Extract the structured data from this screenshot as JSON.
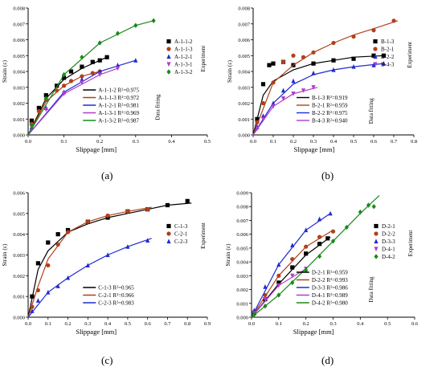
{
  "chart_data": [
    {
      "type": "scatter",
      "panel_label": "(a)",
      "xlabel": "Slippage [mm]",
      "ylabel": "Strain (ε)",
      "xlim": [
        0,
        0.5
      ],
      "ylim": [
        0,
        0.008
      ],
      "xticks": [
        "0.0",
        "0.1",
        "0.2",
        "0.3",
        "0.4",
        "0.5"
      ],
      "yticks": [
        "0.000",
        "0.001",
        "0.002",
        "0.003",
        "0.004",
        "0.005",
        "0.006",
        "0.007",
        "0.008"
      ],
      "legend_experiment_title": "Experiment",
      "legend_fitting_title": "Data fitting",
      "series": [
        {
          "name": "A-1-1-2",
          "fit_label": "A-1-1-2  R²=0.975",
          "color": "#000000",
          "marker": "square",
          "x": [
            0.01,
            0.03,
            0.05,
            0.08,
            0.1,
            0.12,
            0.15,
            0.18,
            0.2,
            0.22
          ],
          "y": [
            0.0009,
            0.0017,
            0.0025,
            0.0031,
            0.0036,
            0.004,
            0.0043,
            0.0046,
            0.0047,
            0.0049
          ],
          "fit_x": [
            0,
            0.05,
            0.1,
            0.15,
            0.2,
            0.22
          ],
          "fit_y": [
            0,
            0.0023,
            0.0035,
            0.0042,
            0.0047,
            0.0049
          ]
        },
        {
          "name": "A-1-1-3",
          "fit_label": "A-1-1-3  R²=0.972",
          "color": "#b0401b",
          "marker": "circle",
          "x": [
            0.01,
            0.03,
            0.05,
            0.08,
            0.1,
            0.12,
            0.15,
            0.18,
            0.2
          ],
          "y": [
            0.0007,
            0.0015,
            0.0022,
            0.0028,
            0.0031,
            0.0034,
            0.0037,
            0.0039,
            0.004
          ],
          "fit_x": [
            0,
            0.05,
            0.1,
            0.15,
            0.2
          ],
          "fit_y": [
            0,
            0.0021,
            0.0031,
            0.0037,
            0.004
          ]
        },
        {
          "name": "A-1-2-1",
          "fit_label": "A-1-2-1  R²=0.981",
          "color": "#1f2bd1",
          "marker": "triangle",
          "x": [
            0.01,
            0.05,
            0.1,
            0.15,
            0.2,
            0.25,
            0.3
          ],
          "y": [
            0.0005,
            0.0017,
            0.0027,
            0.0035,
            0.004,
            0.0044,
            0.0047
          ],
          "fit_x": [
            0,
            0.1,
            0.2,
            0.3
          ],
          "fit_y": [
            0,
            0.0027,
            0.004,
            0.0047
          ]
        },
        {
          "name": "A-1-3-1",
          "fit_label": "A-1-3-1  R²=0.969",
          "color": "#b03cc8",
          "marker": "triangle-down",
          "x": [
            0.01,
            0.05,
            0.1,
            0.15,
            0.2,
            0.25
          ],
          "y": [
            0.0005,
            0.0016,
            0.0026,
            0.0033,
            0.0038,
            0.0042
          ],
          "fit_x": [
            0,
            0.1,
            0.2,
            0.25
          ],
          "fit_y": [
            0,
            0.0026,
            0.0038,
            0.0042
          ]
        },
        {
          "name": "A-1-3-2",
          "fit_label": "A-1-3-2  R²=0.987",
          "color": "#1a8a1a",
          "marker": "diamond",
          "x": [
            0.01,
            0.05,
            0.1,
            0.15,
            0.2,
            0.25,
            0.3,
            0.35
          ],
          "y": [
            0.0006,
            0.0023,
            0.0038,
            0.0049,
            0.0058,
            0.0064,
            0.0069,
            0.0072
          ],
          "fit_x": [
            0,
            0.1,
            0.2,
            0.3,
            0.35
          ],
          "fit_y": [
            0,
            0.0038,
            0.0058,
            0.0069,
            0.0072
          ]
        }
      ]
    },
    {
      "type": "scatter",
      "panel_label": "(b)",
      "xlabel": "Slippage [mm]",
      "ylabel": "Strain (ε)",
      "xlim": [
        0,
        0.8
      ],
      "ylim": [
        0,
        0.008
      ],
      "xticks": [
        "0.0",
        "0.1",
        "0.2",
        "0.3",
        "0.4",
        "0.5",
        "0.6",
        "0.7",
        "0.8"
      ],
      "yticks": [
        "0.000",
        "0.001",
        "0.002",
        "0.003",
        "0.004",
        "0.005",
        "0.006",
        "0.007",
        "0.008"
      ],
      "legend_experiment_title": "Experiment",
      "legend_fitting_title": "Data fitting",
      "series": [
        {
          "name": "B-1-3",
          "fit_label": "B-1-3  R²=0.919",
          "color": "#000000",
          "marker": "square",
          "x": [
            0.02,
            0.05,
            0.08,
            0.1,
            0.15,
            0.2,
            0.3,
            0.4,
            0.5,
            0.6,
            0.65
          ],
          "y": [
            0.001,
            0.0032,
            0.0044,
            0.0045,
            0.0046,
            0.0044,
            0.0045,
            0.0047,
            0.0048,
            0.005,
            0.005
          ],
          "fit_x": [
            0,
            0.05,
            0.1,
            0.2,
            0.3,
            0.4,
            0.5,
            0.65
          ],
          "fit_y": [
            0,
            0.0025,
            0.0034,
            0.0041,
            0.0045,
            0.0047,
            0.0049,
            0.005
          ]
        },
        {
          "name": "B-2-1",
          "fit_label": "B-2-1  R²=0.959",
          "color": "#b0401b",
          "marker": "circle",
          "x": [
            0.02,
            0.05,
            0.1,
            0.15,
            0.2,
            0.25,
            0.3,
            0.4,
            0.5,
            0.6,
            0.7
          ],
          "y": [
            0.0008,
            0.002,
            0.0033,
            0.0046,
            0.005,
            0.0049,
            0.0052,
            0.0058,
            0.0062,
            0.0066,
            0.0072
          ],
          "fit_x": [
            0,
            0.1,
            0.2,
            0.3,
            0.4,
            0.5,
            0.6,
            0.72
          ],
          "fit_y": [
            0,
            0.0033,
            0.0044,
            0.0052,
            0.0058,
            0.0063,
            0.0067,
            0.0072
          ]
        },
        {
          "name": "B-2-2",
          "fit_label": "B-2-2  R²=0.975",
          "color": "#1f2bd1",
          "marker": "triangle",
          "x": [
            0.02,
            0.05,
            0.1,
            0.15,
            0.2,
            0.3,
            0.4,
            0.5,
            0.6,
            0.65
          ],
          "y": [
            0.0005,
            0.0012,
            0.002,
            0.0028,
            0.0034,
            0.0039,
            0.0041,
            0.0043,
            0.0044,
            0.0045
          ],
          "fit_x": [
            0,
            0.1,
            0.2,
            0.3,
            0.4,
            0.5,
            0.65
          ],
          "fit_y": [
            0,
            0.002,
            0.0032,
            0.0038,
            0.0041,
            0.0043,
            0.0045
          ]
        },
        {
          "name": "B-4-3",
          "fit_label": "B-4-3  R²=0.940",
          "color": "#b03cc8",
          "marker": "triangle-down",
          "x": [
            0.02,
            0.05,
            0.1,
            0.15,
            0.2,
            0.25,
            0.3
          ],
          "y": [
            0.0004,
            0.001,
            0.0018,
            0.0023,
            0.0026,
            0.0028,
            0.003
          ],
          "fit_x": [
            0,
            0.1,
            0.2,
            0.32
          ],
          "fit_y": [
            0,
            0.0018,
            0.0026,
            0.003
          ]
        }
      ]
    },
    {
      "type": "scatter",
      "panel_label": "(c)",
      "xlabel": "Slippage [mm]",
      "ylabel": "Strain (ε)",
      "xlim": [
        0,
        0.9
      ],
      "ylim": [
        0,
        0.006
      ],
      "xticks": [
        "0.0",
        "0.1",
        "0.2",
        "0.3",
        "0.4",
        "0.5",
        "0.6",
        "0.7",
        "0.8",
        "0.9"
      ],
      "yticks": [
        "0.000",
        "0.001",
        "0.002",
        "0.003",
        "0.004",
        "0.005",
        "0.006"
      ],
      "legend_experiment_title": "Experiment",
      "legend_fitting_title": "",
      "series": [
        {
          "name": "C-1-3",
          "fit_label": "C-1-3  R²=0.965",
          "color": "#000000",
          "marker": "square",
          "x": [
            0.02,
            0.05,
            0.1,
            0.15,
            0.2,
            0.3,
            0.4,
            0.5,
            0.6,
            0.7,
            0.8
          ],
          "y": [
            0.001,
            0.0026,
            0.0036,
            0.004,
            0.0042,
            0.0046,
            0.0048,
            0.0051,
            0.0052,
            0.0054,
            0.0056
          ],
          "fit_x": [
            0,
            0.05,
            0.1,
            0.2,
            0.3,
            0.4,
            0.5,
            0.6,
            0.7,
            0.82
          ],
          "fit_y": [
            0,
            0.0023,
            0.0032,
            0.0041,
            0.0045,
            0.0048,
            0.005,
            0.0052,
            0.0054,
            0.0055
          ]
        },
        {
          "name": "C-2-1",
          "fit_label": "C-2-1  R²=0.966",
          "color": "#b0401b",
          "marker": "circle",
          "x": [
            0.02,
            0.05,
            0.1,
            0.15,
            0.2,
            0.3,
            0.4,
            0.5,
            0.6
          ],
          "y": [
            0.0005,
            0.0013,
            0.0025,
            0.0035,
            0.0041,
            0.0046,
            0.0049,
            0.0051,
            0.0052
          ],
          "fit_x": [
            0,
            0.05,
            0.1,
            0.2,
            0.3,
            0.4,
            0.5,
            0.62
          ],
          "fit_y": [
            0,
            0.0015,
            0.0028,
            0.0041,
            0.0046,
            0.0049,
            0.0051,
            0.0053
          ]
        },
        {
          "name": "C-2-3",
          "fit_label": "C-2-3  R²=0.983",
          "color": "#1f2bd1",
          "marker": "triangle",
          "x": [
            0.02,
            0.05,
            0.1,
            0.15,
            0.2,
            0.3,
            0.4,
            0.5,
            0.6
          ],
          "y": [
            0.0003,
            0.0008,
            0.0012,
            0.0015,
            0.0019,
            0.0025,
            0.003,
            0.0034,
            0.0037
          ],
          "fit_x": [
            0,
            0.1,
            0.2,
            0.3,
            0.4,
            0.5,
            0.62
          ],
          "fit_y": [
            0,
            0.0012,
            0.0019,
            0.0025,
            0.003,
            0.0034,
            0.0038
          ]
        }
      ]
    },
    {
      "type": "scatter",
      "panel_label": "(d)",
      "xlabel": "Slippage [mm]",
      "ylabel": "Strain (ε)",
      "xlim": [
        0,
        0.6
      ],
      "ylim": [
        0,
        0.009
      ],
      "xticks": [
        "0.0",
        "0.1",
        "0.2",
        "0.3",
        "0.4",
        "0.5",
        "0.6"
      ],
      "yticks": [
        "0.000",
        "0.001",
        "0.002",
        "0.003",
        "0.004",
        "0.005",
        "0.006",
        "0.007",
        "0.008",
        "0.009"
      ],
      "legend_experiment_title": "Experiment",
      "legend_fitting_title": "Data fitting",
      "series": [
        {
          "name": "D-2-1",
          "fit_label": "D-2-1  R²=0.959",
          "color": "#000000",
          "marker": "square",
          "x": [
            0.01,
            0.05,
            0.1,
            0.15,
            0.2,
            0.25,
            0.28
          ],
          "y": [
            0.0003,
            0.0013,
            0.0025,
            0.0036,
            0.0046,
            0.0053,
            0.0057
          ],
          "fit_x": [
            0,
            0.1,
            0.2,
            0.29
          ],
          "fit_y": [
            0,
            0.0024,
            0.0045,
            0.0058
          ]
        },
        {
          "name": "D-2-2",
          "fit_label": "D-2-2  R²=0.993",
          "color": "#b0401b",
          "marker": "circle",
          "x": [
            0.01,
            0.05,
            0.1,
            0.15,
            0.2,
            0.25,
            0.3
          ],
          "y": [
            0.0004,
            0.0016,
            0.003,
            0.0042,
            0.0051,
            0.0058,
            0.0062
          ],
          "fit_x": [
            0,
            0.1,
            0.2,
            0.3
          ],
          "fit_y": [
            0,
            0.003,
            0.0051,
            0.0063
          ]
        },
        {
          "name": "D-3-3",
          "fit_label": "D-3-3  R²=0.986",
          "color": "#1f2bd1",
          "marker": "triangle",
          "x": [
            0.01,
            0.05,
            0.1,
            0.15,
            0.2,
            0.25,
            0.29
          ],
          "y": [
            0.0005,
            0.0022,
            0.0038,
            0.0052,
            0.0063,
            0.0071,
            0.0075
          ],
          "fit_x": [
            0,
            0.1,
            0.2,
            0.29
          ],
          "fit_y": [
            0,
            0.0038,
            0.0063,
            0.0075
          ]
        },
        {
          "name": "D-4-1",
          "fit_label": "D-4-1  R²=0.989",
          "color": "#b03cc8",
          "marker": "triangle-down",
          "x": [
            0.01,
            0.05,
            0.1,
            0.15,
            0.2
          ],
          "y": [
            0.0003,
            0.0013,
            0.0023,
            0.003,
            0.0035
          ],
          "fit_x": [
            0,
            0.1,
            0.2
          ],
          "fit_y": [
            0,
            0.0023,
            0.0035
          ]
        },
        {
          "name": "D-4-2",
          "fit_label": "D-4-2  R²=0.980",
          "color": "#1a8a1a",
          "marker": "diamond",
          "x": [
            0.01,
            0.05,
            0.1,
            0.15,
            0.2,
            0.25,
            0.3,
            0.35,
            0.4,
            0.43,
            0.45
          ],
          "y": [
            0.0002,
            0.0008,
            0.0016,
            0.0025,
            0.0034,
            0.0044,
            0.0055,
            0.0065,
            0.0076,
            0.0081,
            0.008
          ],
          "fit_x": [
            0,
            0.1,
            0.2,
            0.3,
            0.4,
            0.47
          ],
          "fit_y": [
            0,
            0.0016,
            0.0035,
            0.0055,
            0.0075,
            0.0088
          ]
        }
      ]
    }
  ]
}
